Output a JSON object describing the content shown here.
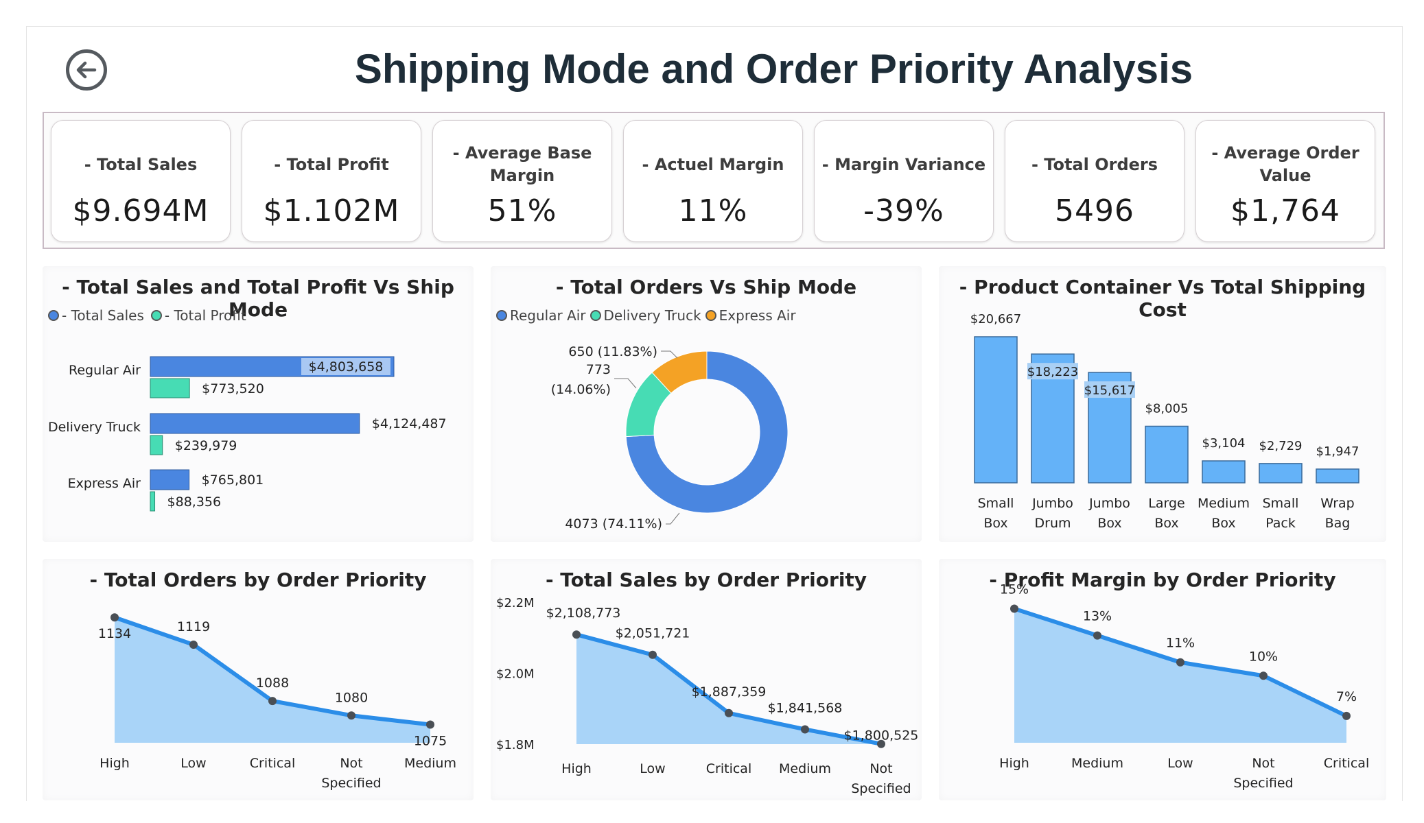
{
  "header": {
    "title": "Shipping Mode and Order Priority Analysis",
    "back_icon": "arrow-left-circle-icon"
  },
  "kpis": [
    {
      "label": "- Total Sales",
      "value": "$9.694M"
    },
    {
      "label": "- Total Profit",
      "value": "$1.102M"
    },
    {
      "label": "- Average Base Margin",
      "value": "51%"
    },
    {
      "label": "- Actuel Margin",
      "value": "11%"
    },
    {
      "label": "- Margin Variance",
      "value": "-39%"
    },
    {
      "label": "- Total Orders",
      "value": "5496"
    },
    {
      "label": "- Average Order Value",
      "value": "$1,764"
    }
  ],
  "colors": {
    "sales_bar": "#4a86e0",
    "profit_bar": "#47dcb4",
    "donut_regular": "#4a86e0",
    "donut_truck": "#47dcb4",
    "donut_express": "#f4a225",
    "container_bar": "#64b2f8",
    "line": "#2b8de8",
    "area": "#a9d4f8",
    "point": "#4a4f55"
  },
  "charts": {
    "sales_profit": {
      "title": "- Total Sales and Total Profit Vs Ship Mode",
      "legend": [
        "- Total Sales",
        "- Total Profit"
      ]
    },
    "orders_shipmode": {
      "title": "- Total Orders Vs Ship Mode",
      "legend": [
        "Regular Air",
        "Delivery Truck",
        "Express Air"
      ]
    },
    "container_cost": {
      "title": "- Product Container Vs Total Shipping Cost"
    },
    "orders_priority": {
      "title": "- Total Orders by Order Priority"
    },
    "sales_priority": {
      "title": "- Total Sales by Order Priority"
    },
    "margin_priority": {
      "title": "- Profit Margin by Order Priority"
    }
  },
  "chart_data": [
    {
      "type": "bar",
      "orientation": "horizontal",
      "categories": [
        "Regular Air",
        "Delivery Truck",
        "Express Air"
      ],
      "series": [
        {
          "name": "- Total Sales",
          "values": [
            4803658,
            4124487,
            765801
          ],
          "labels": [
            "$4,803,658",
            "$4,124,487",
            "$765,801"
          ]
        },
        {
          "name": "- Total Profit",
          "values": [
            773520,
            239979,
            88356
          ],
          "labels": [
            "$773,520",
            "$239,979",
            "$88,356"
          ]
        }
      ],
      "legend": "top-left"
    },
    {
      "type": "pie",
      "donut": true,
      "categories": [
        "Regular Air",
        "Delivery Truck",
        "Express Air"
      ],
      "values": [
        4073,
        773,
        650
      ],
      "labels": [
        "4073 (74.11%)",
        "773 (14.06%)",
        "650 (11.83%)"
      ],
      "legend": "top-left"
    },
    {
      "type": "bar",
      "categories": [
        "Small Box",
        "Jumbo Drum",
        "Jumbo Box",
        "Large Box",
        "Medium Box",
        "Small Pack",
        "Wrap Bag"
      ],
      "values": [
        20667,
        18223,
        15617,
        8005,
        3104,
        2729,
        1947
      ],
      "labels": [
        "$20,667",
        "$18,223",
        "$15,617",
        "$8,005",
        "$3,104",
        "$2,729",
        "$1,947"
      ]
    },
    {
      "type": "area",
      "categories": [
        "High",
        "Low",
        "Critical",
        "Not Specified",
        "Medium"
      ],
      "values": [
        1134,
        1119,
        1088,
        1080,
        1075
      ],
      "labels": [
        "1134",
        "1119",
        "1088",
        "1080",
        "1075"
      ],
      "ylim": [
        1065,
        1139
      ]
    },
    {
      "type": "area",
      "categories": [
        "High",
        "Low",
        "Critical",
        "Medium",
        "Not Specified"
      ],
      "values": [
        2108773,
        2051721,
        1887359,
        1841568,
        1800525
      ],
      "labels": [
        "$2,108,773",
        "$2,051,721",
        "$1,887,359",
        "$1,841,568",
        "$1,800,525"
      ],
      "yticks": [
        "$2.2M",
        "$2.0M",
        "$1.8M"
      ],
      "ytick_values": [
        2200000,
        2000000,
        1800000
      ],
      "ylim": [
        1800000,
        2200000
      ]
    },
    {
      "type": "area",
      "categories": [
        "High",
        "Medium",
        "Low",
        "Not Specified",
        "Critical"
      ],
      "values": [
        15,
        13,
        11,
        10,
        7
      ],
      "labels": [
        "15%",
        "13%",
        "11%",
        "10%",
        "7%"
      ],
      "ylim": [
        5,
        16
      ]
    }
  ]
}
